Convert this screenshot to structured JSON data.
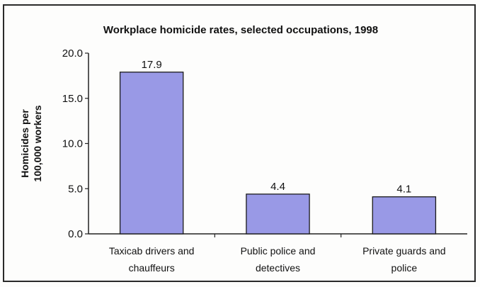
{
  "chart_data": {
    "type": "bar",
    "title": "Workplace homicide rates, selected occupations, 1998",
    "xlabel": "",
    "ylabel_lines": [
      "Homicides per",
      "100,000 workers"
    ],
    "categories": [
      [
        "Taxicab drivers and",
        "chauffeurs"
      ],
      [
        "Public police and",
        "detectives"
      ],
      [
        "Private guards and",
        "police"
      ]
    ],
    "values": [
      17.9,
      4.4,
      4.1
    ],
    "value_labels": [
      "17.9",
      "4.4",
      "4.1"
    ],
    "ylim": [
      0,
      20
    ],
    "yticks": [
      0,
      5,
      10,
      15,
      20
    ],
    "ytick_labels": [
      "0.0",
      "5.0",
      "10.0",
      "15.0",
      "20.0"
    ],
    "grid": false,
    "legend": "none",
    "bar_color": "#9999e6",
    "bar_edge_color": "#1a1a1a"
  }
}
